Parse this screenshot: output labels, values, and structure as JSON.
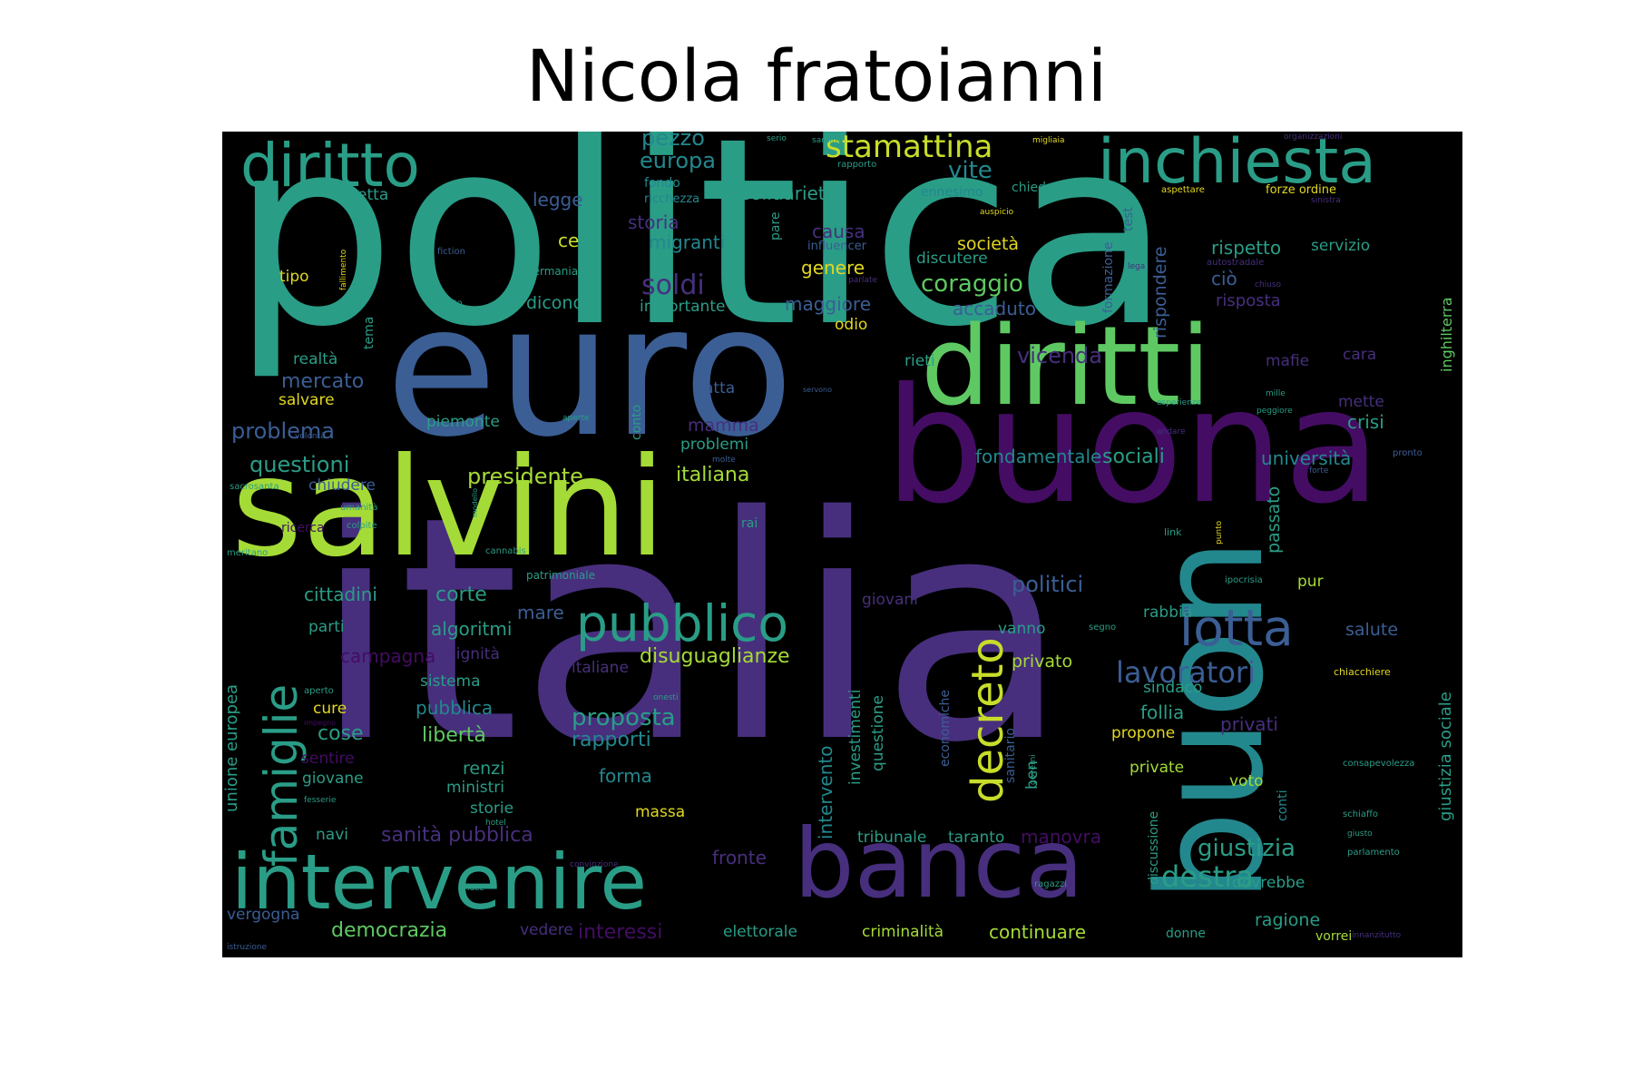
{
  "title": "Nicola fratoianni",
  "palette": {
    "background": "#000000",
    "teal": "#2a9d87",
    "blue": "#3b5e95",
    "green": "#5ec962",
    "lime": "#a5db36",
    "purple": "#440d63",
    "indigo": "#472f7d",
    "cyan": "#23888e",
    "yellow": "#e2d81f"
  },
  "words": [
    {
      "id": "politica",
      "text": "politica",
      "color": "#2a9d87"
    },
    {
      "id": "italia",
      "text": "italia",
      "color": "#472f7d"
    },
    {
      "id": "euro",
      "text": "euro",
      "color": "#3b5e95"
    },
    {
      "id": "salvini",
      "text": "salvini",
      "color": "#a5db36"
    },
    {
      "id": "buona",
      "text": "buona",
      "color": "#440d63"
    },
    {
      "id": "diritti",
      "text": "diritti",
      "color": "#5ec962"
    },
    {
      "id": "buon",
      "text": "buon",
      "color": "#23888e"
    },
    {
      "id": "banca",
      "text": "banca",
      "color": "#472f7d"
    },
    {
      "id": "intervenire",
      "text": "intervenire",
      "color": "#2a9d87"
    },
    {
      "id": "inchiesta",
      "text": "inchiesta",
      "color": "#2a9d87"
    },
    {
      "id": "diritto",
      "text": "diritto",
      "color": "#2a9d87"
    },
    {
      "id": "pubblico",
      "text": "pubblico",
      "color": "#2a9d87"
    },
    {
      "id": "lotta",
      "text": "lotta",
      "color": "#3b5e95"
    },
    {
      "id": "famiglie",
      "text": "famiglie",
      "color": "#2a9d87"
    },
    {
      "id": "decreto",
      "text": "decreto",
      "color": "#c8dd2a"
    },
    {
      "id": "stamattina",
      "text": "stamattina",
      "color": "#c8dd2a"
    },
    {
      "id": "lavoratori",
      "text": "lavoratori",
      "color": "#3b5e95"
    },
    {
      "id": "destra",
      "text": "destra",
      "color": "#2a9d87"
    },
    {
      "id": "giustizia",
      "text": "giustizia",
      "color": "#2a9d87"
    },
    {
      "id": "soldi",
      "text": "soldi",
      "color": "#472f7d"
    },
    {
      "id": "europa",
      "text": "europa",
      "color": "#23888e"
    },
    {
      "id": "pezzo",
      "text": "pezzo",
      "color": "#23888e"
    },
    {
      "id": "vite",
      "text": "vite",
      "color": "#23888e"
    },
    {
      "id": "coraggio",
      "text": "coraggio",
      "color": "#5ec962"
    },
    {
      "id": "vicenda",
      "text": "vicenda",
      "color": "#472f7d"
    },
    {
      "id": "presidente",
      "text": "presidente",
      "color": "#a5db36"
    },
    {
      "id": "italiana",
      "text": "italiana",
      "color": "#a5db36"
    },
    {
      "id": "sociali",
      "text": "sociali",
      "color": "#2a9d87"
    },
    {
      "id": "universita",
      "text": "università",
      "color": "#23888e"
    },
    {
      "id": "fondamentale",
      "text": "fondamentale",
      "color": "#23888e"
    },
    {
      "id": "politici",
      "text": "politici",
      "color": "#3b5e95"
    },
    {
      "id": "proposta",
      "text": "proposta",
      "color": "#2a9d87"
    },
    {
      "id": "disuguaglianze",
      "text": "disuguaglianze",
      "color": "#a5db36"
    },
    {
      "id": "problema",
      "text": "problema",
      "color": "#3b5e95"
    },
    {
      "id": "questioni",
      "text": "questioni",
      "color": "#2a9d87"
    },
    {
      "id": "migranti",
      "text": "migranti",
      "color": "#23888e"
    },
    {
      "id": "rispetto",
      "text": "rispetto",
      "color": "#2a9d87"
    },
    {
      "id": "servizio",
      "text": "servizio",
      "color": "#2a9d87"
    },
    {
      "id": "solidarieta",
      "text": "solidarietà",
      "color": "#2a9d87"
    },
    {
      "id": "legge",
      "text": "legge",
      "color": "#3b5e95"
    },
    {
      "id": "storia",
      "text": "storia",
      "color": "#472f7d"
    },
    {
      "id": "causa",
      "text": "causa",
      "color": "#472f7d"
    },
    {
      "id": "ce",
      "text": "ce",
      "color": "#c8dd2a"
    },
    {
      "id": "societa",
      "text": "società",
      "color": "#e2d81f"
    },
    {
      "id": "genere",
      "text": "genere",
      "color": "#e2d81f"
    },
    {
      "id": "discutere",
      "text": "discutere",
      "color": "#2a9d87"
    },
    {
      "id": "maggiore",
      "text": "maggiore",
      "color": "#3b5e95"
    },
    {
      "id": "accaduto",
      "text": "accaduto",
      "color": "#3b5e95"
    },
    {
      "id": "importante",
      "text": "importante",
      "color": "#2a9d87"
    },
    {
      "id": "dicono",
      "text": "dicono",
      "color": "#2a9d87"
    },
    {
      "id": "odio",
      "text": "odio",
      "color": "#e2d81f"
    },
    {
      "id": "cio",
      "text": "ciò",
      "color": "#3b5e95"
    },
    {
      "id": "risposta",
      "text": "risposta",
      "color": "#472f7d"
    },
    {
      "id": "rispondere",
      "text": "rispondere",
      "color": "#3b5e95"
    },
    {
      "id": "mafie",
      "text": "mafie",
      "color": "#472f7d"
    },
    {
      "id": "cara",
      "text": "cara",
      "color": "#472f7d"
    },
    {
      "id": "mette",
      "text": "mette",
      "color": "#472f7d"
    },
    {
      "id": "crisi",
      "text": "crisi",
      "color": "#2a9d87"
    },
    {
      "id": "rieti",
      "text": "rieti",
      "color": "#2a9d87"
    },
    {
      "id": "fatta",
      "text": "fatta",
      "color": "#3b5e95"
    },
    {
      "id": "mamma",
      "text": "mamma",
      "color": "#472f7d"
    },
    {
      "id": "problemi",
      "text": "problemi",
      "color": "#2a9d87"
    },
    {
      "id": "piemonte",
      "text": "piemonte",
      "color": "#2a9d87"
    },
    {
      "id": "mercato",
      "text": "mercato",
      "color": "#3b5e95"
    },
    {
      "id": "realta",
      "text": "realtà",
      "color": "#2a9d87"
    },
    {
      "id": "salvare",
      "text": "salvare",
      "color": "#e2d81f"
    },
    {
      "id": "tipo",
      "text": "tipo",
      "color": "#e2d81f"
    },
    {
      "id": "ricetta",
      "text": "ricetta",
      "color": "#2a9d87"
    },
    {
      "id": "chiudere",
      "text": "chiudere",
      "color": "#3b5e95"
    },
    {
      "id": "cittadini",
      "text": "cittadini",
      "color": "#2a9d87"
    },
    {
      "id": "corte",
      "text": "corte",
      "color": "#2a9d87"
    },
    {
      "id": "algoritmi",
      "text": "algoritmi",
      "color": "#2a9d87"
    },
    {
      "id": "parti",
      "text": "parti",
      "color": "#2a9d87"
    },
    {
      "id": "campagna",
      "text": "campagna",
      "color": "#440d63"
    },
    {
      "id": "dignita",
      "text": "dignità",
      "color": "#472f7d"
    },
    {
      "id": "mare",
      "text": "mare",
      "color": "#3b5e95"
    },
    {
      "id": "italiane",
      "text": "italiane",
      "color": "#472f7d"
    },
    {
      "id": "sistema",
      "text": "sistema",
      "color": "#2a9d87"
    },
    {
      "id": "pubblica",
      "text": "pubblica",
      "color": "#23888e"
    },
    {
      "id": "cure",
      "text": "cure",
      "color": "#e2d81f"
    },
    {
      "id": "cose",
      "text": "cose",
      "color": "#2a9d87"
    },
    {
      "id": "liberta",
      "text": "libertà",
      "color": "#5ec962"
    },
    {
      "id": "rapporti",
      "text": "rapporti",
      "color": "#23888e"
    },
    {
      "id": "sentire",
      "text": "sentire",
      "color": "#440d63"
    },
    {
      "id": "giovane",
      "text": "giovane",
      "color": "#2a9d87"
    },
    {
      "id": "renzi",
      "text": "renzi",
      "color": "#2a9d87"
    },
    {
      "id": "ministri",
      "text": "ministri",
      "color": "#2a9d87"
    },
    {
      "id": "forma",
      "text": "forma",
      "color": "#23888e"
    },
    {
      "id": "storie",
      "text": "storie",
      "color": "#2a9d87"
    },
    {
      "id": "massa",
      "text": "massa",
      "color": "#e2d81f"
    },
    {
      "id": "navi",
      "text": "navi",
      "color": "#2a9d87"
    },
    {
      "id": "sanita_pubblica",
      "text": "sanità pubblica",
      "color": "#472f7d"
    },
    {
      "id": "fronte",
      "text": "fronte",
      "color": "#472f7d"
    },
    {
      "id": "tribunale",
      "text": "tribunale",
      "color": "#2a9d87"
    },
    {
      "id": "taranto",
      "text": "taranto",
      "color": "#2a9d87"
    },
    {
      "id": "manovra",
      "text": "manovra",
      "color": "#440d63"
    },
    {
      "id": "democrazia",
      "text": "democrazia",
      "color": "#5ec962"
    },
    {
      "id": "vergogna",
      "text": "vergogna",
      "color": "#3b5e95"
    },
    {
      "id": "vedere",
      "text": "vedere",
      "color": "#472f7d"
    },
    {
      "id": "interessi",
      "text": "interessi",
      "color": "#440d63"
    },
    {
      "id": "elettorale",
      "text": "elettorale",
      "color": "#2a9d87"
    },
    {
      "id": "criminalita",
      "text": "criminalità",
      "color": "#a5db36"
    },
    {
      "id": "continuare",
      "text": "continuare",
      "color": "#a5db36"
    },
    {
      "id": "donne",
      "text": "donne",
      "color": "#2a9d87"
    },
    {
      "id": "ragione",
      "text": "ragione",
      "color": "#2a9d87"
    },
    {
      "id": "vorrei",
      "text": "vorrei",
      "color": "#a5db36"
    },
    {
      "id": "dovrebbe",
      "text": "dovrebbe",
      "color": "#2a9d87"
    },
    {
      "id": "privato",
      "text": "privato",
      "color": "#a5db36"
    },
    {
      "id": "sindaco",
      "text": "sindaco",
      "color": "#2a9d87"
    },
    {
      "id": "follia",
      "text": "follia",
      "color": "#2a9d87"
    },
    {
      "id": "propone",
      "text": "propone",
      "color": "#e2d81f"
    },
    {
      "id": "privati",
      "text": "privati",
      "color": "#472f7d"
    },
    {
      "id": "private",
      "text": "private",
      "color": "#a5db36"
    },
    {
      "id": "voto",
      "text": "voto",
      "color": "#a5db36"
    },
    {
      "id": "vanno",
      "text": "vanno",
      "color": "#2a9d87"
    },
    {
      "id": "rabbia",
      "text": "rabbia",
      "color": "#2a9d87"
    },
    {
      "id": "pur",
      "text": "pur",
      "color": "#a5db36"
    },
    {
      "id": "salute",
      "text": "salute",
      "color": "#3b5e95"
    },
    {
      "id": "giovani",
      "text": "giovani",
      "color": "#472f7d"
    },
    {
      "id": "passato",
      "text": "passato",
      "color": "#2a9d87"
    },
    {
      "id": "unione_europea",
      "text": "unione europea",
      "color": "#2a9d87"
    },
    {
      "id": "giustizia_sociale",
      "text": "giustizia sociale",
      "color": "#2a9d87"
    },
    {
      "id": "intervento",
      "text": "intervento",
      "color": "#23888e"
    },
    {
      "id": "investimenti",
      "text": "investimenti",
      "color": "#2a9d87"
    },
    {
      "id": "questione",
      "text": "questione",
      "color": "#2a9d87"
    },
    {
      "id": "economiche",
      "text": "economiche",
      "color": "#3b5e95"
    },
    {
      "id": "sanitario",
      "text": "sanitario",
      "color": "#3b5e95"
    },
    {
      "id": "ben",
      "text": "ben",
      "color": "#2a9d87"
    },
    {
      "id": "discussione",
      "text": "discussione",
      "color": "#2a9d87"
    },
    {
      "id": "conti",
      "text": "conti",
      "color": "#23888e"
    },
    {
      "id": "tema",
      "text": "tema",
      "color": "#2a9d87"
    },
    {
      "id": "conto",
      "text": "conto",
      "color": "#2a9d87"
    },
    {
      "id": "formazione",
      "text": "formazione",
      "color": "#3b5e95"
    },
    {
      "id": "test",
      "text": "test",
      "color": "#3b5e95"
    },
    {
      "id": "inghilterra",
      "text": "inghilterra",
      "color": "#5ec962"
    },
    {
      "id": "pare",
      "text": "pare",
      "color": "#2a9d87"
    },
    {
      "id": "fondo",
      "text": "fondo",
      "color": "#23888e"
    },
    {
      "id": "ricchezza",
      "text": "ricchezza",
      "color": "#23888e"
    },
    {
      "id": "ennesimo",
      "text": "ennesimo",
      "color": "#23888e"
    },
    {
      "id": "chiedono",
      "text": "chiedono",
      "color": "#2a9d87"
    },
    {
      "id": "influencer",
      "text": "influencer",
      "color": "#3b5e95"
    },
    {
      "id": "forze_ordine",
      "text": "forze ordine",
      "color": "#e2d81f"
    },
    {
      "id": "aspettare",
      "text": "aspettare",
      "color": "#e2d81f"
    },
    {
      "id": "sinistra",
      "text": "sinistra",
      "color": "#472f7d"
    },
    {
      "id": "organizzazioni",
      "text": "organizzazioni",
      "color": "#472f7d"
    },
    {
      "id": "migliaia",
      "text": "migliaia",
      "color": "#e2d81f"
    },
    {
      "id": "rapporto",
      "text": "rapporto",
      "color": "#2a9d87"
    },
    {
      "id": "sardine",
      "text": "sardine",
      "color": "#2a9d87"
    },
    {
      "id": "serio",
      "text": "serio",
      "color": "#2a9d87"
    },
    {
      "id": "auspicio",
      "text": "auspicio",
      "color": "#e2d81f"
    },
    {
      "id": "autostradale",
      "text": "autostradale",
      "color": "#472f7d"
    },
    {
      "id": "lega",
      "text": "lega",
      "color": "#472f7d"
    },
    {
      "id": "chiuso",
      "text": "chiuso",
      "color": "#472f7d"
    },
    {
      "id": "parlate",
      "text": "parlate",
      "color": "#472f7d"
    },
    {
      "id": "fallimento",
      "text": "fallimento",
      "color": "#e2d81f"
    },
    {
      "id": "fiction",
      "text": "fiction",
      "color": "#3b5e95"
    },
    {
      "id": "germania",
      "text": "germania",
      "color": "#2a9d87"
    },
    {
      "id": "credito",
      "text": "credito",
      "color": "#2a9d87"
    },
    {
      "id": "servono",
      "text": "servono",
      "color": "#3b5e95"
    },
    {
      "id": "esperienze",
      "text": "esperienze",
      "color": "#2a9d87"
    },
    {
      "id": "mille",
      "text": "mille",
      "color": "#2a9d87"
    },
    {
      "id": "peggiore",
      "text": "peggiore",
      "color": "#2a9d87"
    },
    {
      "id": "andare",
      "text": "andare",
      "color": "#472f7d"
    },
    {
      "id": "aperte",
      "text": "aperte",
      "color": "#2a9d87"
    },
    {
      "id": "volonta",
      "text": "volontà",
      "color": "#3b5e95"
    },
    {
      "id": "molte",
      "text": "molte",
      "color": "#3b5e95"
    },
    {
      "id": "pronto",
      "text": "pronto",
      "color": "#3b5e95"
    },
    {
      "id": "forte",
      "text": "forte",
      "color": "#3b5e95"
    },
    {
      "id": "sacrosanta",
      "text": "sacrosanta",
      "color": "#2a9d87"
    },
    {
      "id": "umanita",
      "text": "umanità",
      "color": "#2a9d87"
    },
    {
      "id": "colpite",
      "text": "colpite",
      "color": "#2a9d87"
    },
    {
      "id": "ricerca",
      "text": "ricerca",
      "color": "#440d63"
    },
    {
      "id": "modello",
      "text": "modello",
      "color": "#2a9d87"
    },
    {
      "id": "cannabis",
      "text": "cannabis",
      "color": "#2a9d87"
    },
    {
      "id": "meritano",
      "text": "meritano",
      "color": "#2a9d87"
    },
    {
      "id": "rai",
      "text": "rai",
      "color": "#2a9d87"
    },
    {
      "id": "link",
      "text": "link",
      "color": "#2a9d87"
    },
    {
      "id": "punto",
      "text": "punto",
      "color": "#e2d81f"
    },
    {
      "id": "nuovi",
      "text": "nuovi",
      "color": "#440d63"
    },
    {
      "id": "patrimoniale",
      "text": "patrimoniale",
      "color": "#2a9d87"
    },
    {
      "id": "ipocrisia",
      "text": "ipocrisia",
      "color": "#2a9d87"
    },
    {
      "id": "segno",
      "text": "segno",
      "color": "#2a9d87"
    },
    {
      "id": "aperto",
      "text": "aperto",
      "color": "#2a9d87"
    },
    {
      "id": "impegno",
      "text": "impegno",
      "color": "#440d63"
    },
    {
      "id": "onesti",
      "text": "onesti",
      "color": "#2a9d87"
    },
    {
      "id": "chiacchiere",
      "text": "chiacchiere",
      "color": "#e2d81f"
    },
    {
      "id": "consapevolezza",
      "text": "consapevolezza",
      "color": "#2a9d87"
    },
    {
      "id": "governi",
      "text": "governi",
      "color": "#2a9d87"
    },
    {
      "id": "schiaffo",
      "text": "schiaffo",
      "color": "#2a9d87"
    },
    {
      "id": "giusto",
      "text": "giusto",
      "color": "#2a9d87"
    },
    {
      "id": "fesserie",
      "text": "fesserie",
      "color": "#2a9d87"
    },
    {
      "id": "hotel",
      "text": "hotel",
      "color": "#2a9d87"
    },
    {
      "id": "convinzione",
      "text": "convinzione",
      "color": "#472f7d"
    },
    {
      "id": "parlamento",
      "text": "parlamento",
      "color": "#2a9d87"
    },
    {
      "id": "ragazzi",
      "text": "ragazzi",
      "color": "#2a9d87"
    },
    {
      "id": "luce",
      "text": "luce",
      "color": "#2a9d87"
    },
    {
      "id": "istruzione",
      "text": "istruzione",
      "color": "#3b5e95"
    },
    {
      "id": "innanzitutto",
      "text": "innanzitutto",
      "color": "#472f7d"
    }
  ]
}
